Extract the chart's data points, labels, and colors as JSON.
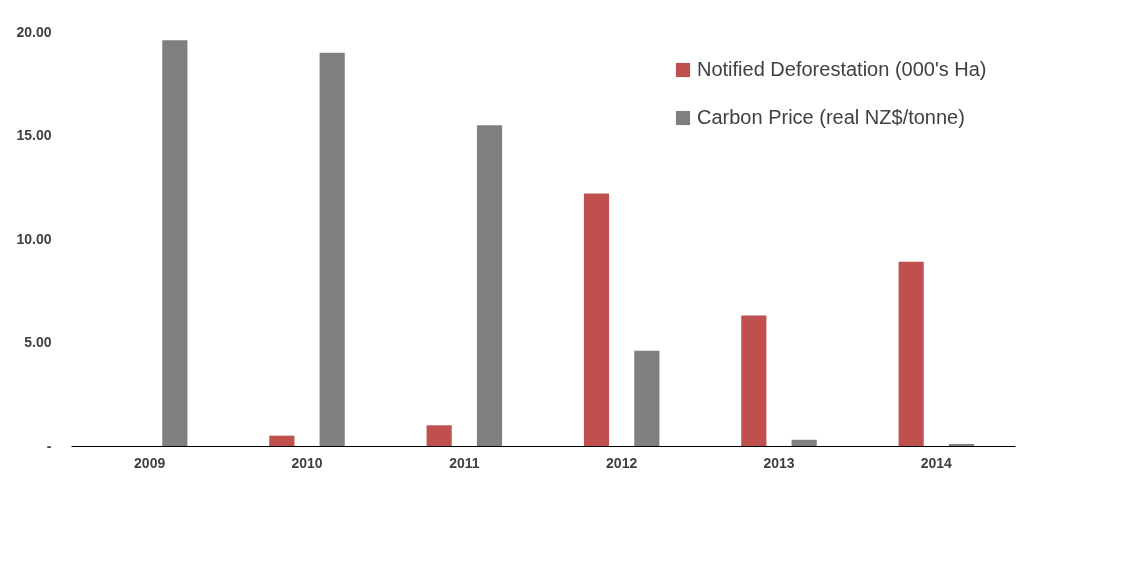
{
  "chart_data": {
    "type": "bar",
    "categories": [
      "2009",
      "2010",
      "2011",
      "2012",
      "2013",
      "2014"
    ],
    "series": [
      {
        "name": "Notified Deforestation (000's Ha)",
        "color": "#c0504d",
        "values": [
          0,
          0.5,
          1.0,
          12.2,
          6.3,
          8.9
        ]
      },
      {
        "name": "Carbon Price (real NZ$/tonne)",
        "color": "#7f7f7f",
        "values": [
          19.6,
          19.0,
          15.5,
          4.6,
          0.3,
          0.1
        ]
      }
    ],
    "ylim": [
      0,
      20
    ],
    "yticks": [
      {
        "value": 0,
        "label": "-"
      },
      {
        "value": 5,
        "label": "5.00"
      },
      {
        "value": 10,
        "label": "10.00"
      },
      {
        "value": 15,
        "label": "15.00"
      },
      {
        "value": 20,
        "label": "20.00"
      }
    ],
    "grid": false,
    "legend": "top right"
  }
}
